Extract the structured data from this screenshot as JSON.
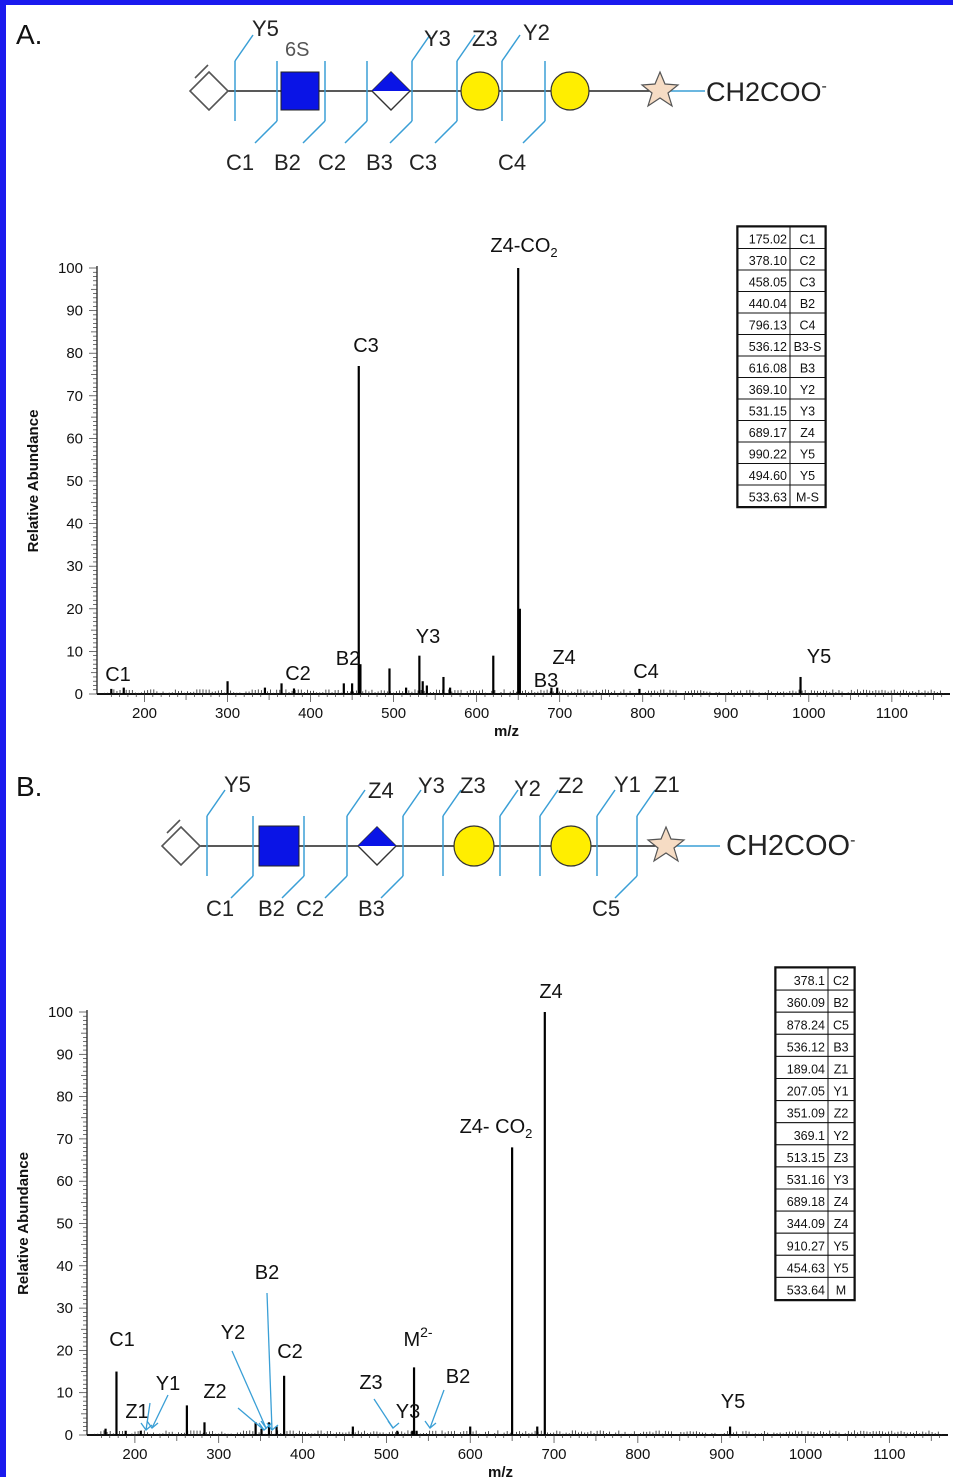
{
  "panels": [
    {
      "label": "A.",
      "glycan": {
        "sulfate_label": "6S",
        "end_group": "CH2COO",
        "end_charge": "-",
        "cleavage_labels_top": [
          "Y5",
          "Y3",
          "Z3",
          "Y2"
        ],
        "cleavage_labels_bottom": [
          "C1",
          "B2",
          "C2",
          "B3",
          "C3",
          "C4"
        ]
      },
      "table": [
        [
          "175.02",
          "C1"
        ],
        [
          "378.10",
          "C2"
        ],
        [
          "458.05",
          "C3"
        ],
        [
          "440.04",
          "B2"
        ],
        [
          "796.13",
          "C4"
        ],
        [
          "536.12",
          "B3-S"
        ],
        [
          "616.08",
          "B3"
        ],
        [
          "369.10",
          "Y2"
        ],
        [
          "531.15",
          "Y3"
        ],
        [
          "689.17",
          "Z4"
        ],
        [
          "990.22",
          "Y5"
        ],
        [
          "494.60",
          "Y5"
        ],
        [
          "533.63",
          "M-S"
        ]
      ]
    },
    {
      "label": "B.",
      "glycan": {
        "end_group": "CH2COO",
        "end_charge": "-",
        "cleavage_labels_top": [
          "Y5",
          "Z4",
          "Y3",
          "Z3",
          "Y2",
          "Z2",
          "Y1",
          "Z1"
        ],
        "cleavage_labels_bottom": [
          "C1",
          "B2",
          "C2",
          "B3",
          "C5"
        ]
      },
      "table": [
        [
          "378.1",
          "C2"
        ],
        [
          "360.09",
          "B2"
        ],
        [
          "878.24",
          "C5"
        ],
        [
          "536.12",
          "B3"
        ],
        [
          "189.04",
          "Z1"
        ],
        [
          "207.05",
          "Y1"
        ],
        [
          "351.09",
          "Z2"
        ],
        [
          "369.1",
          "Y2"
        ],
        [
          "513.15",
          "Z3"
        ],
        [
          "531.16",
          "Y3"
        ],
        [
          "689.18",
          "Z4"
        ],
        [
          "344.09",
          "Z4"
        ],
        [
          "910.27",
          "Y5"
        ],
        [
          "454.63",
          "Y5"
        ],
        [
          "533.64",
          "M"
        ]
      ]
    }
  ],
  "chart_data": [
    {
      "type": "bar",
      "xlabel": "m/z",
      "ylabel": "Relative Abundance",
      "xlim": [
        150,
        1170
      ],
      "ylim": [
        0,
        100
      ],
      "xticks": [
        200,
        300,
        400,
        500,
        600,
        700,
        800,
        900,
        1000,
        1100
      ],
      "yticks": [
        0,
        10,
        20,
        30,
        40,
        50,
        60,
        70,
        80,
        90,
        100
      ],
      "peaks": [
        {
          "x": 160,
          "y": 1.2
        },
        {
          "x": 175,
          "y": 1.5
        },
        {
          "x": 300,
          "y": 3
        },
        {
          "x": 345,
          "y": 1.5
        },
        {
          "x": 365,
          "y": 2.5
        },
        {
          "x": 380,
          "y": 1.3
        },
        {
          "x": 440,
          "y": 2.5
        },
        {
          "x": 450,
          "y": 2.5
        },
        {
          "x": 458,
          "y": 77
        },
        {
          "x": 460,
          "y": 7
        },
        {
          "x": 495,
          "y": 6
        },
        {
          "x": 515,
          "y": 1.5
        },
        {
          "x": 531,
          "y": 9
        },
        {
          "x": 535,
          "y": 3
        },
        {
          "x": 540,
          "y": 2
        },
        {
          "x": 560,
          "y": 4
        },
        {
          "x": 568,
          "y": 1.5
        },
        {
          "x": 620,
          "y": 9
        },
        {
          "x": 650,
          "y": 100
        },
        {
          "x": 652,
          "y": 20
        },
        {
          "x": 690,
          "y": 1.5
        },
        {
          "x": 697,
          "y": 1.5
        },
        {
          "x": 796,
          "y": 1.2
        },
        {
          "x": 990,
          "y": 4
        }
      ],
      "annotations": [
        {
          "text": "C1",
          "x": 175,
          "y": 1.5
        },
        {
          "text": "C2",
          "x": 378,
          "y": 1.3
        },
        {
          "text": "B2",
          "x": 440,
          "y": 2.5
        },
        {
          "text": "C3",
          "x": 458,
          "y": 77
        },
        {
          "text": "Y3",
          "x": 531,
          "y": 9
        },
        {
          "text": "Z4-CO",
          "sub": "2",
          "x": 650,
          "y": 100
        },
        {
          "text": "B3",
          "x": 616,
          "y": 1
        },
        {
          "text": "Z4",
          "x": 689,
          "y": 1.5
        },
        {
          "text": "C4",
          "x": 796,
          "y": 1.2
        },
        {
          "text": "Y5",
          "x": 990,
          "y": 4
        }
      ]
    },
    {
      "type": "bar",
      "xlabel": "m/z",
      "ylabel": "Relative Abundance",
      "xlim": [
        150,
        1170
      ],
      "ylim": [
        0,
        100
      ],
      "xticks": [
        200,
        300,
        400,
        500,
        600,
        700,
        800,
        900,
        1000,
        1100
      ],
      "yticks": [
        0,
        10,
        20,
        30,
        40,
        50,
        60,
        70,
        80,
        90,
        100
      ],
      "peaks": [
        {
          "x": 165,
          "y": 1.5
        },
        {
          "x": 178,
          "y": 15
        },
        {
          "x": 189,
          "y": 1
        },
        {
          "x": 207,
          "y": 1
        },
        {
          "x": 262,
          "y": 7
        },
        {
          "x": 283,
          "y": 3
        },
        {
          "x": 344,
          "y": 3
        },
        {
          "x": 351,
          "y": 1.5
        },
        {
          "x": 360,
          "y": 3
        },
        {
          "x": 369,
          "y": 2
        },
        {
          "x": 378,
          "y": 14
        },
        {
          "x": 460,
          "y": 2
        },
        {
          "x": 513,
          "y": 1
        },
        {
          "x": 531,
          "y": 1
        },
        {
          "x": 533,
          "y": 16
        },
        {
          "x": 536,
          "y": 1
        },
        {
          "x": 600,
          "y": 2
        },
        {
          "x": 650,
          "y": 68
        },
        {
          "x": 680,
          "y": 2
        },
        {
          "x": 689,
          "y": 100
        },
        {
          "x": 910,
          "y": 2
        }
      ],
      "annotations": [
        {
          "text": "C1",
          "x": 178,
          "y": 15
        },
        {
          "text": "Z1",
          "x": 189,
          "y": 1
        },
        {
          "text": "Y1",
          "x": 207,
          "y": 1
        },
        {
          "text": "Z2",
          "x": 351,
          "y": 1.5
        },
        {
          "text": "Y2",
          "x": 369,
          "y": 2
        },
        {
          "text": "B2",
          "x": 360,
          "y": 3
        },
        {
          "text": "C2",
          "x": 378,
          "y": 14
        },
        {
          "text": "Z3",
          "x": 513,
          "y": 1
        },
        {
          "text": "Y3",
          "x": 531,
          "y": 1
        },
        {
          "text": "M",
          "sup": "2-",
          "x": 533,
          "y": 16
        },
        {
          "text": "B2",
          "x": 536,
          "y": 1
        },
        {
          "text": "Z4- CO",
          "sub": "2",
          "x": 650,
          "y": 68
        },
        {
          "text": "Z4",
          "x": 689,
          "y": 100
        },
        {
          "text": "Y5",
          "x": 910,
          "y": 2
        }
      ]
    }
  ],
  "colors": {
    "frame": "#1a1aee",
    "hexnac": "#0a14e6",
    "hexose": "#ffee00",
    "cleavage": "#3a9fd6",
    "star": "#f6dcc4"
  }
}
